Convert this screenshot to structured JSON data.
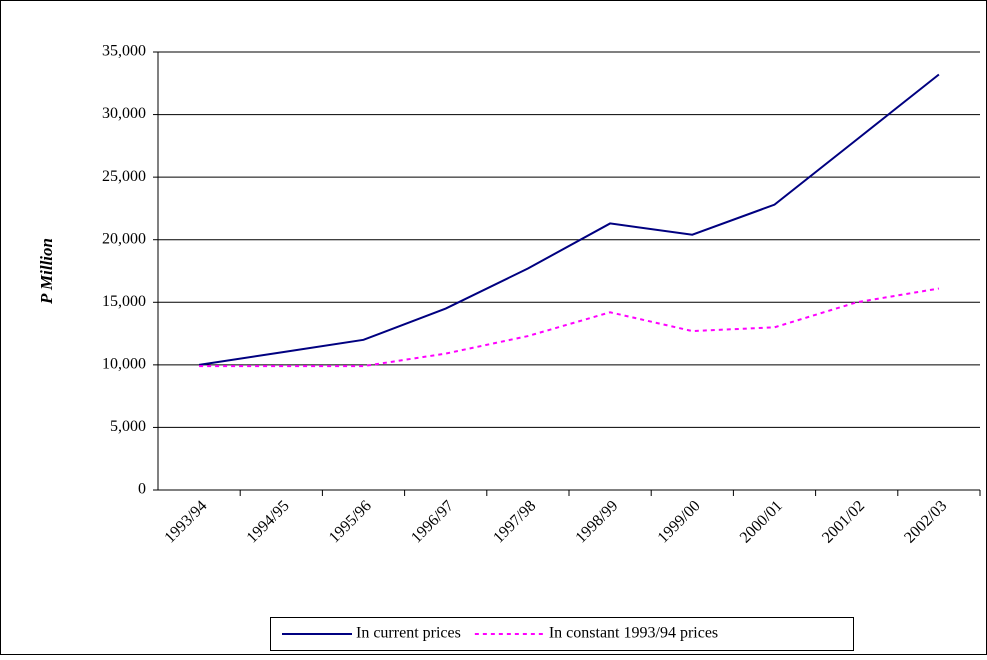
{
  "chart_data": {
    "type": "line",
    "y_label": "P Million",
    "categories": [
      "1993/94",
      "1994/95",
      "1995/96",
      "1996/97",
      "1997/98",
      "1998/99",
      "1999/00",
      "2000/01",
      "2001/02",
      "2002/03"
    ],
    "series": [
      {
        "name": "In current prices",
        "color": "#000080",
        "line_style": "solid",
        "values": [
          10000,
          11000,
          12000,
          14500,
          17700,
          21300,
          20400,
          22800,
          28000,
          33200
        ]
      },
      {
        "name": "In constant 1993/94 prices",
        "color": "#ff00ff",
        "line_style": "dashed",
        "values": [
          9900,
          9900,
          9900,
          10900,
          12300,
          14200,
          12700,
          13000,
          15000,
          16100
        ]
      }
    ],
    "ylim": [
      0,
      35000
    ],
    "yticks": [
      0,
      {
        "value": 5000,
        "label": "5,000"
      },
      {
        "value": 10000,
        "label": "10,000"
      },
      {
        "value": 15000,
        "label": "15,000"
      },
      {
        "value": 20000,
        "label": "20,000"
      },
      {
        "value": 25000,
        "label": "25,000"
      },
      {
        "value": 30000,
        "label": "30,000"
      },
      {
        "value": 35000,
        "label": "35,000"
      }
    ],
    "grid": true,
    "legend": "bottom"
  }
}
